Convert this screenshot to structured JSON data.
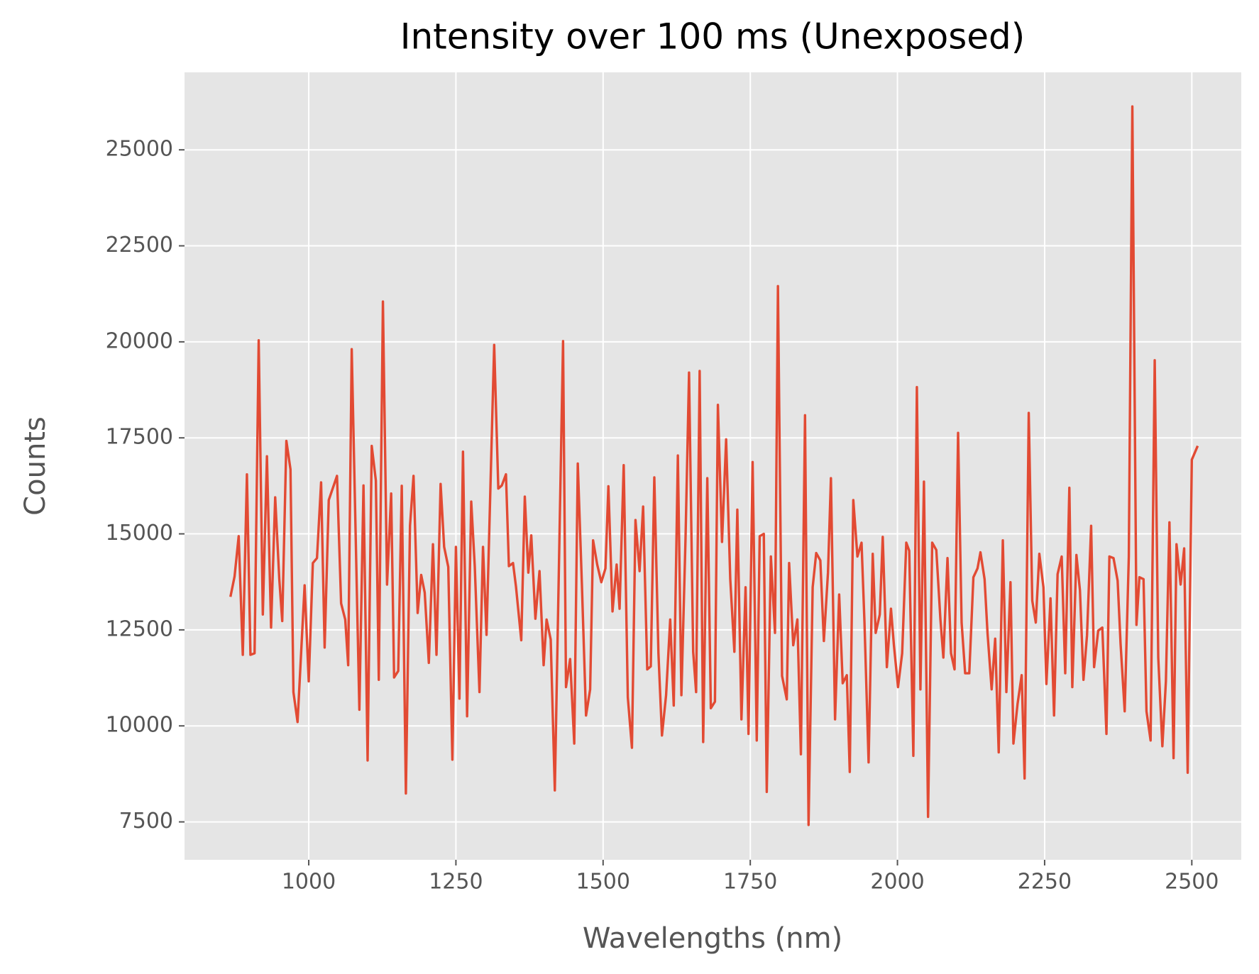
{
  "chart_data": {
    "type": "line",
    "title": "Intensity over 100 ms (Unexposed)",
    "x_label": "Wavelengths (nm)",
    "y_label": "Counts",
    "grid": true,
    "x": [
      867,
      874,
      881,
      888,
      895,
      901,
      908,
      915,
      922,
      929,
      936,
      943,
      950,
      955,
      962,
      969,
      974,
      981,
      993,
      1000,
      1007,
      1014,
      1021,
      1027,
      1034,
      1048,
      1055,
      1062,
      1067,
      1073,
      1086,
      1093,
      1100,
      1107,
      1114,
      1119,
      1126,
      1133,
      1140,
      1145,
      1152,
      1158,
      1165,
      1172,
      1178,
      1185,
      1191,
      1197,
      1204,
      1211,
      1217,
      1224,
      1230,
      1237,
      1244,
      1250,
      1256,
      1262,
      1269,
      1276,
      1282,
      1290,
      1296,
      1302,
      1315,
      1322,
      1328,
      1335,
      1340,
      1347,
      1352,
      1361,
      1367,
      1373,
      1378,
      1385,
      1392,
      1399,
      1404,
      1411,
      1418,
      1432,
      1437,
      1444,
      1451,
      1457,
      1464,
      1471,
      1478,
      1483,
      1490,
      1497,
      1504,
      1509,
      1516,
      1523,
      1528,
      1535,
      1542,
      1549,
      1555,
      1562,
      1568,
      1575,
      1581,
      1587,
      1594,
      1600,
      1607,
      1614,
      1620,
      1627,
      1633,
      1640,
      1646,
      1653,
      1658,
      1664,
      1670,
      1677,
      1683,
      1690,
      1695,
      1702,
      1709,
      1716,
      1723,
      1728,
      1735,
      1742,
      1747,
      1754,
      1761,
      1766,
      1773,
      1778,
      1785,
      1792,
      1797,
      1804,
      1812,
      1816,
      1823,
      1830,
      1836,
      1843,
      1849,
      1856,
      1862,
      1869,
      1875,
      1882,
      1887,
      1894,
      1901,
      1907,
      1914,
      1919,
      1925,
      1932,
      1939,
      1944,
      1951,
      1958,
      1963,
      1970,
      1975,
      1982,
      1989,
      1994,
      2001,
      2008,
      2015,
      2020,
      2027,
      2033,
      2039,
      2045,
      2052,
      2059,
      2066,
      2073,
      2078,
      2085,
      2091,
      2097,
      2103,
      2109,
      2115,
      2122,
      2129,
      2136,
      2141,
      2148,
      2153,
      2160,
      2166,
      2172,
      2179,
      2185,
      2192,
      2197,
      2204,
      2211,
      2216,
      2223,
      2229,
      2235,
      2241,
      2248,
      2253,
      2260,
      2266,
      2272,
      2279,
      2285,
      2292,
      2297,
      2304,
      2310,
      2316,
      2322,
      2329,
      2334,
      2341,
      2348,
      2355,
      2360,
      2367,
      2374,
      2379,
      2386,
      2393,
      2399,
      2406,
      2411,
      2418,
      2423,
      2430,
      2437,
      2443,
      2450,
      2456,
      2462,
      2469,
      2474,
      2481,
      2487,
      2493,
      2500,
      2510
    ],
    "series": [
      {
        "name": "Counts",
        "color": "#e24a33",
        "values": [
          13360,
          13890,
          14940,
          11850,
          16550,
          11850,
          11890,
          20040,
          12900,
          17020,
          12560,
          15950,
          13820,
          12730,
          17420,
          16680,
          10880,
          10100,
          13660,
          11160,
          14240,
          14370,
          16340,
          12040,
          15880,
          16510,
          13190,
          12770,
          11580,
          19810,
          10420,
          16260,
          9100,
          17290,
          16390,
          11200,
          21050,
          13680,
          16050,
          11260,
          11430,
          16250,
          8240,
          15210,
          16510,
          12940,
          13930,
          13470,
          11640,
          14730,
          11850,
          16300,
          14660,
          14140,
          9120,
          14660,
          10710,
          17140,
          10250,
          15840,
          14160,
          10880,
          14660,
          12370,
          19920,
          16180,
          16260,
          16550,
          14160,
          14240,
          13630,
          12230,
          15970,
          13990,
          14960,
          12790,
          14030,
          11580,
          12770,
          12250,
          8320,
          20020,
          11010,
          11740,
          9540,
          16830,
          13680,
          10270,
          10950,
          14830,
          14200,
          13740,
          14100,
          16240,
          12980,
          14200,
          13050,
          16790,
          10740,
          9430,
          15360,
          14030,
          15710,
          11470,
          11550,
          16470,
          11890,
          9750,
          10800,
          12770,
          10530,
          17040,
          10800,
          14870,
          19200,
          11930,
          10880,
          19240,
          9580,
          16450,
          10460,
          10630,
          18360,
          14790,
          17460,
          13820,
          11930,
          15630,
          10170,
          13610,
          9790,
          16870,
          9620,
          14940,
          15000,
          8280,
          14410,
          12420,
          21450,
          11300,
          10690,
          14240,
          12100,
          12770,
          9260,
          18090,
          7420,
          13610,
          14500,
          14310,
          12210,
          13990,
          16450,
          10170,
          13420,
          11110,
          11320,
          8800,
          15880,
          14410,
          14770,
          12690,
          9050,
          14480,
          12420,
          12900,
          14920,
          11530,
          13050,
          12100,
          11010,
          11890,
          14770,
          14560,
          9220,
          18820,
          10950,
          16360,
          7630,
          14770,
          14580,
          12770,
          11780,
          14370,
          11890,
          11470,
          17630,
          12690,
          11370,
          11370,
          13870,
          14100,
          14520,
          13820,
          12420,
          10950,
          12270,
          9310,
          14830,
          10880,
          13740,
          9540,
          10570,
          11320,
          8630,
          18150,
          13260,
          12690,
          14480,
          13610,
          11090,
          13320,
          10270,
          13950,
          14410,
          11370,
          16200,
          11010,
          14450,
          13530,
          11200,
          12360,
          15210,
          11530,
          12480,
          12560,
          9790,
          14410,
          14370,
          13780,
          12140,
          10380,
          14410,
          26130,
          12630,
          13870,
          13820,
          10380,
          9620,
          19520,
          11780,
          9470,
          11160,
          15300,
          9160,
          14730,
          13680,
          14620,
          8780,
          16930,
          17290
        ]
      }
    ],
    "xlim": [
      789,
      2584
    ],
    "ylim": [
      6513,
      27017
    ],
    "xticks": [
      1000,
      1250,
      1500,
      1750,
      2000,
      2250,
      2500
    ],
    "yticks": [
      7500,
      10000,
      12500,
      15000,
      17500,
      20000,
      22500,
      25000
    ]
  }
}
